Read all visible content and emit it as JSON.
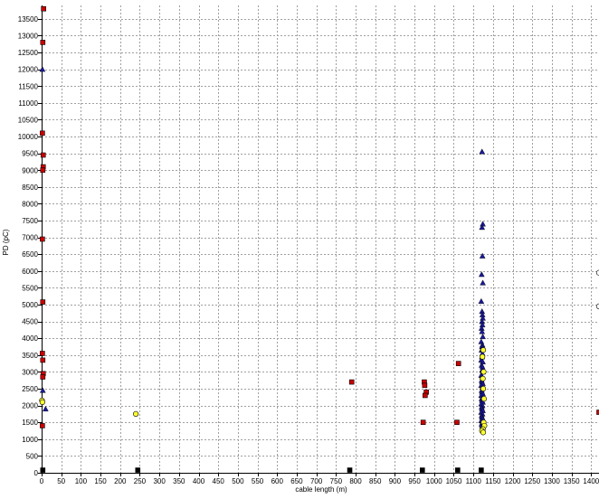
{
  "chart_data": {
    "type": "scatter",
    "title": "",
    "xlabel": "cable length (m)",
    "ylabel": "PD (pC)",
    "xlim": [
      0,
      1420
    ],
    "ylim": [
      0,
      13900
    ],
    "x_ticks": [
      0,
      50,
      100,
      150,
      200,
      250,
      300,
      350,
      400,
      450,
      500,
      550,
      600,
      650,
      700,
      750,
      800,
      850,
      900,
      950,
      1000,
      1050,
      1100,
      1150,
      1200,
      1250,
      1300,
      1350,
      1400
    ],
    "y_ticks": [
      0,
      500,
      1000,
      1500,
      2000,
      2500,
      3000,
      3500,
      4000,
      4500,
      5000,
      5500,
      6000,
      6500,
      7000,
      7500,
      8000,
      8500,
      9000,
      9500,
      10000,
      10500,
      11000,
      11500,
      12000,
      12500,
      13000,
      13500
    ],
    "grid": true,
    "legend": "none",
    "series": [
      {
        "marker": "square",
        "color": "#cc0000",
        "points": [
          [
            5,
            13800
          ],
          [
            3,
            12800
          ],
          [
            2,
            10100
          ],
          [
            4,
            9450
          ],
          [
            4,
            9100
          ],
          [
            3,
            9000
          ],
          [
            2,
            6950
          ],
          [
            3,
            5080
          ],
          [
            2,
            3550
          ],
          [
            3,
            3350
          ],
          [
            4,
            2950
          ],
          [
            3,
            2850
          ],
          [
            2,
            1400
          ],
          [
            790,
            2700
          ],
          [
            975,
            2700
          ],
          [
            976,
            2600
          ],
          [
            980,
            2400
          ],
          [
            977,
            2300
          ],
          [
            972,
            1500
          ],
          [
            1062,
            3250
          ],
          [
            1058,
            1500
          ],
          [
            1420,
            1800
          ]
        ]
      },
      {
        "marker": "triangle",
        "color": "#1a1a99",
        "points": [
          [
            2,
            12000
          ],
          [
            3,
            2450
          ],
          [
            10,
            1900
          ],
          [
            1122,
            9550
          ],
          [
            1124,
            7400
          ],
          [
            1122,
            7300
          ],
          [
            1123,
            6450
          ],
          [
            1121,
            5900
          ],
          [
            1124,
            5650
          ],
          [
            1120,
            5100
          ],
          [
            1122,
            4800
          ],
          [
            1123,
            4700
          ],
          [
            1124,
            4600
          ],
          [
            1122,
            4500
          ],
          [
            1123,
            4400
          ],
          [
            1121,
            4300
          ],
          [
            1122,
            4200
          ],
          [
            1124,
            4050
          ],
          [
            1120,
            3900
          ],
          [
            1123,
            3800
          ],
          [
            1122,
            3750
          ],
          [
            1124,
            3700
          ],
          [
            1121,
            3650
          ],
          [
            1123,
            3550
          ],
          [
            1122,
            3450
          ],
          [
            1120,
            3350
          ],
          [
            1124,
            3300
          ],
          [
            1121,
            3200
          ],
          [
            1123,
            3150
          ],
          [
            1122,
            3050
          ],
          [
            1124,
            3000
          ],
          [
            1120,
            2900
          ],
          [
            1123,
            2850
          ],
          [
            1121,
            2750
          ],
          [
            1122,
            2700
          ],
          [
            1124,
            2650
          ],
          [
            1120,
            2600
          ],
          [
            1123,
            2550
          ],
          [
            1121,
            2450
          ],
          [
            1122,
            2400
          ],
          [
            1124,
            2350
          ],
          [
            1120,
            2300
          ],
          [
            1123,
            2250
          ],
          [
            1121,
            2200
          ],
          [
            1122,
            2150
          ],
          [
            1124,
            2100
          ],
          [
            1120,
            2050
          ],
          [
            1123,
            2000
          ],
          [
            1121,
            1950
          ],
          [
            1122,
            1900
          ],
          [
            1124,
            1850
          ],
          [
            1120,
            1800
          ],
          [
            1123,
            1750
          ],
          [
            1121,
            1700
          ],
          [
            1122,
            1650
          ],
          [
            1124,
            1600
          ],
          [
            1120,
            1550
          ],
          [
            1123,
            1500
          ],
          [
            1121,
            1450
          ],
          [
            1122,
            1400
          ]
        ]
      },
      {
        "marker": "circle",
        "color": "#ffff33",
        "points": [
          [
            240,
            1750
          ],
          [
            1125,
            3650
          ],
          [
            1123,
            3450
          ],
          [
            1126,
            3000
          ],
          [
            1124,
            2800
          ],
          [
            1125,
            2500
          ],
          [
            1127,
            2200
          ],
          [
            1126,
            1500
          ],
          [
            1128,
            1400
          ],
          [
            1124,
            1300
          ],
          [
            1122,
            1250
          ],
          [
            1125,
            1200
          ],
          [
            1,
            2150
          ],
          [
            2,
            2100
          ]
        ]
      },
      {
        "marker": "circle",
        "color": "#ffffff",
        "points": [
          [
            1420,
            5950
          ],
          [
            1420,
            4950
          ]
        ]
      },
      {
        "marker": "square",
        "color": "#000000",
        "points": [
          [
            3,
            80
          ],
          [
            245,
            80
          ],
          [
            785,
            80
          ],
          [
            970,
            80
          ],
          [
            1060,
            80
          ],
          [
            1120,
            80
          ]
        ]
      }
    ]
  }
}
